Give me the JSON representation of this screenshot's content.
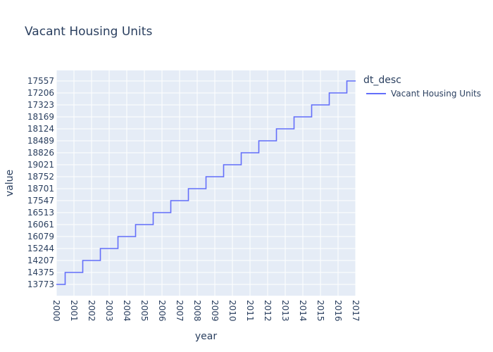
{
  "chart_data": {
    "type": "line",
    "line_shape": "step",
    "title": "Vacant Housing Units",
    "xlabel": "year",
    "ylabel": "value",
    "legend_title": "dt_desc",
    "legend_position": "top-right",
    "x_categories": [
      "2000",
      "2001",
      "2002",
      "2003",
      "2004",
      "2005",
      "2006",
      "2007",
      "2008",
      "2009",
      "2010",
      "2011",
      "2012",
      "2013",
      "2014",
      "2015",
      "2016",
      "2017"
    ],
    "y_categories": [
      "13773",
      "14375",
      "14207",
      "15244",
      "16079",
      "16061",
      "16513",
      "17547",
      "18701",
      "18752",
      "19021",
      "18826",
      "18489",
      "18124",
      "18169",
      "17323",
      "17206",
      "17557"
    ],
    "series": [
      {
        "name": "Vacant Housing Units",
        "color": "#636efa",
        "x": [
          "2000",
          "2001",
          "2002",
          "2003",
          "2004",
          "2005",
          "2006",
          "2007",
          "2008",
          "2009",
          "2010",
          "2011",
          "2012",
          "2013",
          "2014",
          "2015",
          "2016",
          "2017"
        ],
        "y": [
          "13773",
          "14375",
          "14207",
          "15244",
          "16079",
          "16061",
          "16513",
          "17547",
          "18701",
          "18752",
          "19021",
          "18826",
          "18489",
          "18124",
          "18169",
          "17323",
          "17206",
          "17557"
        ]
      }
    ],
    "grid": true,
    "plot_bgcolor": "#e5ecf6"
  }
}
